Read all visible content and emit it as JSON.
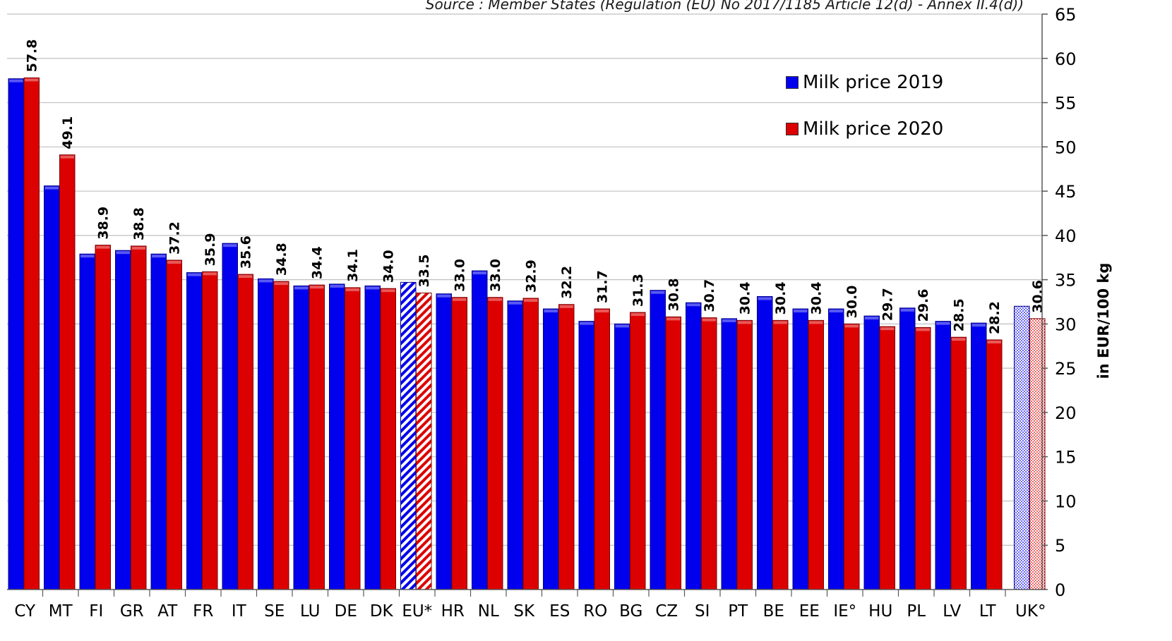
{
  "source_note": "Source : Member States (Regulation (EU) No 2017/1185  Article 12(d) - Annex II.4(d))",
  "chart_data": {
    "type": "bar",
    "categories": [
      "CY",
      "MT",
      "FI",
      "GR",
      "AT",
      "FR",
      "IT",
      "SE",
      "LU",
      "DE",
      "DK",
      "EU*",
      "HR",
      "NL",
      "SK",
      "ES",
      "RO",
      "BG",
      "CZ",
      "SI",
      "PT",
      "BE",
      "EE",
      "IE°",
      "HU",
      "PL",
      "LV",
      "LT",
      "UK°"
    ],
    "series": [
      {
        "name": "Milk price 2019",
        "color": "#0000ee",
        "values": [
          57.7,
          45.6,
          37.9,
          38.3,
          37.9,
          35.8,
          39.1,
          35.1,
          34.3,
          34.5,
          34.3,
          34.7,
          33.4,
          36.0,
          32.6,
          31.7,
          30.3,
          30.0,
          33.8,
          32.4,
          30.6,
          33.1,
          31.7,
          31.7,
          30.9,
          31.8,
          30.3,
          30.1,
          32.0
        ],
        "show_labels": false
      },
      {
        "name": "Milk price 2020",
        "color": "#dd0000",
        "values": [
          57.8,
          49.1,
          38.9,
          38.8,
          37.2,
          35.9,
          35.6,
          34.8,
          34.4,
          34.1,
          34.0,
          33.5,
          33.0,
          33.0,
          32.9,
          32.2,
          31.7,
          31.3,
          30.8,
          30.7,
          30.4,
          30.4,
          30.4,
          30.0,
          29.7,
          29.6,
          28.5,
          28.2,
          30.6
        ],
        "data_labels": [
          "57.8",
          "49.1",
          "38.9",
          "38.8",
          "37.2",
          "35.9",
          "35.6",
          "34.8",
          "34.4",
          "34.1",
          "34.0",
          "33.5",
          "33.0",
          "33.0",
          "32.9",
          "32.2",
          "31.7",
          "31.3",
          "30.8",
          "30.7",
          "30.4",
          "30.4",
          "30.4",
          "30.0",
          "29.7",
          "29.6",
          "28.5",
          "28.2",
          "30.6"
        ]
      }
    ],
    "special_patterns": {
      "EU*": "diagonal-hatch",
      "UK°": "dotted"
    },
    "ylabel": "in EUR/100 kg",
    "ylim": [
      0,
      65
    ],
    "yticks": [
      0,
      5,
      10,
      15,
      20,
      25,
      30,
      35,
      40,
      45,
      50,
      55,
      60,
      65
    ],
    "y_axis_side": "right",
    "grid": true,
    "legend_position": "top-right"
  }
}
